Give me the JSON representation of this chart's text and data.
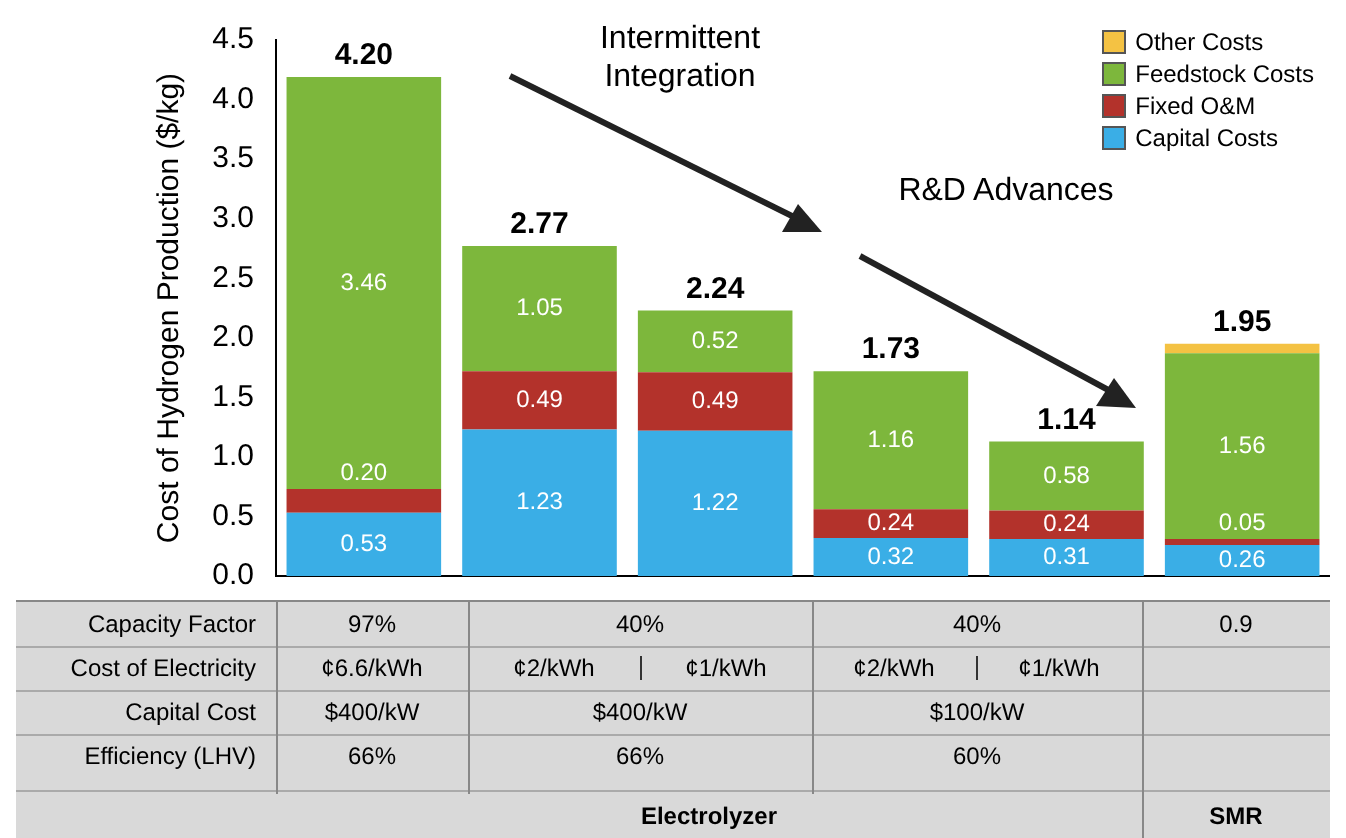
{
  "chart_data": {
    "type": "bar",
    "stacked": true,
    "ylabel": "Cost of Hydrogen Production ($/kg)",
    "categories": [
      null,
      null,
      null,
      null,
      null,
      null
    ],
    "series": [
      {
        "name": "Capital Costs",
        "color": "#3aaee6",
        "values": [
          0.53,
          1.23,
          1.22,
          0.32,
          0.31,
          0.26
        ],
        "value_labels": [
          "0.53",
          "1.23",
          "1.22",
          "0.32",
          "0.31",
          "0.26"
        ]
      },
      {
        "name": "Fixed O&M",
        "color": "#b3322b",
        "values": [
          0.2,
          0.49,
          0.49,
          0.24,
          0.24,
          0.05
        ],
        "value_labels": [
          "0.20",
          "0.49",
          "0.49",
          "0.24",
          "0.24",
          "0.05"
        ]
      },
      {
        "name": "Feedstock Costs",
        "color": "#7db73c",
        "values": [
          3.46,
          1.05,
          0.52,
          1.16,
          0.58,
          1.56
        ],
        "value_labels": [
          "3.46",
          "1.05",
          "0.52",
          "1.16",
          "0.58",
          "1.56"
        ]
      },
      {
        "name": "Other Costs",
        "color": "#f4c243",
        "values": [
          null,
          null,
          null,
          null,
          null,
          0.08
        ]
      }
    ],
    "totals": [
      "4.20",
      "2.77",
      "2.24",
      "1.73",
      "1.14",
      "1.95"
    ],
    "ylim": [
      0,
      4.5
    ],
    "yticks": [
      {
        "value": 0,
        "label": "0.0"
      },
      0.5,
      {
        "value": 1,
        "label": "1.0"
      },
      1.5,
      {
        "value": 2,
        "label": "2.0"
      },
      2.5,
      {
        "value": 3,
        "label": "3.0"
      },
      3.5,
      {
        "value": 4,
        "label": "4.0"
      },
      4.5
    ],
    "grid": false,
    "legend": "top right",
    "annotations": [
      "Intermittent Integration",
      "R&D Advances",
      "Capacity Factor",
      "97%",
      "40%",
      "40%",
      "0.9",
      "Cost of Electricity",
      "¢6.6/kWh",
      "¢2/kWh",
      "¢1/kWh",
      "¢2/kWh",
      "¢1/kWh",
      "Capital Cost",
      "$400/kW",
      "$400/kW",
      "$100/kW",
      "Efficiency (LHV)",
      "66%",
      "66%",
      "60%",
      "Electrolyzer",
      "SMR"
    ]
  }
}
